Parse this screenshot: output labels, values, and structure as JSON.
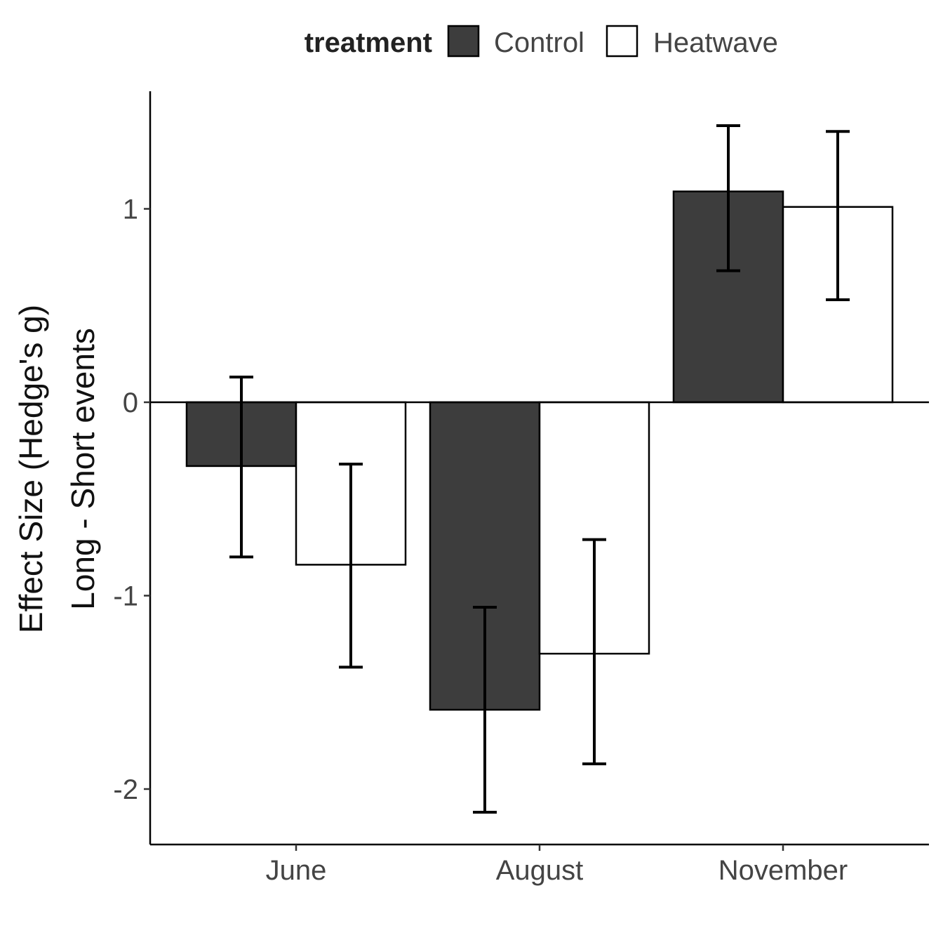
{
  "chart_data": {
    "type": "bar",
    "title": "",
    "xlabel": "",
    "ylabel": [
      "Effect Size (Hedge's g)",
      "Long - Short events"
    ],
    "categories": [
      "June",
      "August",
      "November"
    ],
    "ylim": [
      -2.3,
      1.6
    ],
    "yticks": [
      1,
      0,
      -1,
      -2
    ],
    "ytick_labels": [
      "1",
      "0",
      "-1",
      "-2"
    ],
    "legend": {
      "title": "treatment",
      "position": "top",
      "entries": [
        {
          "name": "Control",
          "color": "#3d3d3d"
        },
        {
          "name": "Heatwave",
          "color": "#ffffff"
        }
      ]
    },
    "series": [
      {
        "name": "Control",
        "color": "#3d3d3d",
        "values": [
          -0.33,
          -1.59,
          1.09
        ],
        "error_low": [
          -0.8,
          -2.12,
          0.68
        ],
        "error_high": [
          0.13,
          -1.06,
          1.43
        ]
      },
      {
        "name": "Heatwave",
        "color": "#ffffff",
        "values": [
          -0.84,
          -1.3,
          1.01
        ],
        "error_low": [
          -1.37,
          -1.87,
          0.53
        ],
        "error_high": [
          -0.32,
          -0.71,
          1.4
        ]
      }
    ],
    "grid": false
  }
}
